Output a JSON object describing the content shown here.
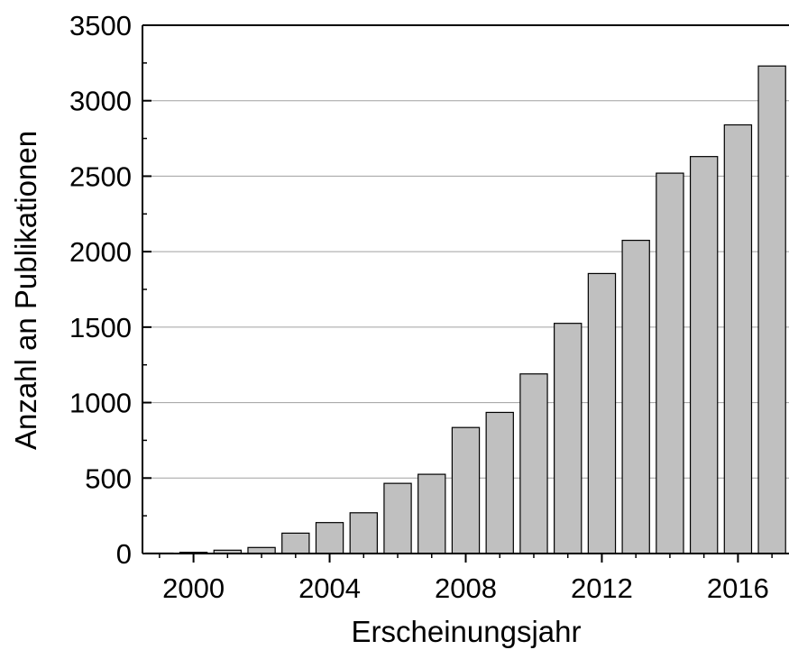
{
  "chart_data": {
    "type": "bar",
    "xlabel": "Erscheinungsjahr",
    "ylabel": "Anzahl an Publikationen",
    "ylim": [
      0,
      3500
    ],
    "xlim": [
      1998.5,
      2017.5
    ],
    "yticks": [
      0,
      500,
      1000,
      1500,
      2000,
      2500,
      3000,
      3500
    ],
    "xticks": [
      2000,
      2004,
      2008,
      2012,
      2016
    ],
    "x_minor_ticks": [
      1999,
      2000,
      2001,
      2002,
      2003,
      2004,
      2005,
      2006,
      2007,
      2008,
      2009,
      2010,
      2011,
      2012,
      2013,
      2014,
      2015,
      2016,
      2017
    ],
    "y_minor_ticks": [
      250,
      750,
      1250,
      1750,
      2250,
      2750,
      3250
    ],
    "grid": "horizontal",
    "categories": [
      1999,
      2000,
      2001,
      2002,
      2003,
      2004,
      2005,
      2006,
      2007,
      2008,
      2009,
      2010,
      2011,
      2012,
      2013,
      2014,
      2015,
      2016,
      2017
    ],
    "values": [
      3,
      8,
      22,
      40,
      135,
      205,
      270,
      465,
      525,
      835,
      935,
      1190,
      1525,
      1855,
      2075,
      2520,
      2630,
      2840,
      3230
    ],
    "bar_color": "#c0c0c0",
    "bar_edge_color": "#000000",
    "grid_color": "#a0a0a0"
  }
}
